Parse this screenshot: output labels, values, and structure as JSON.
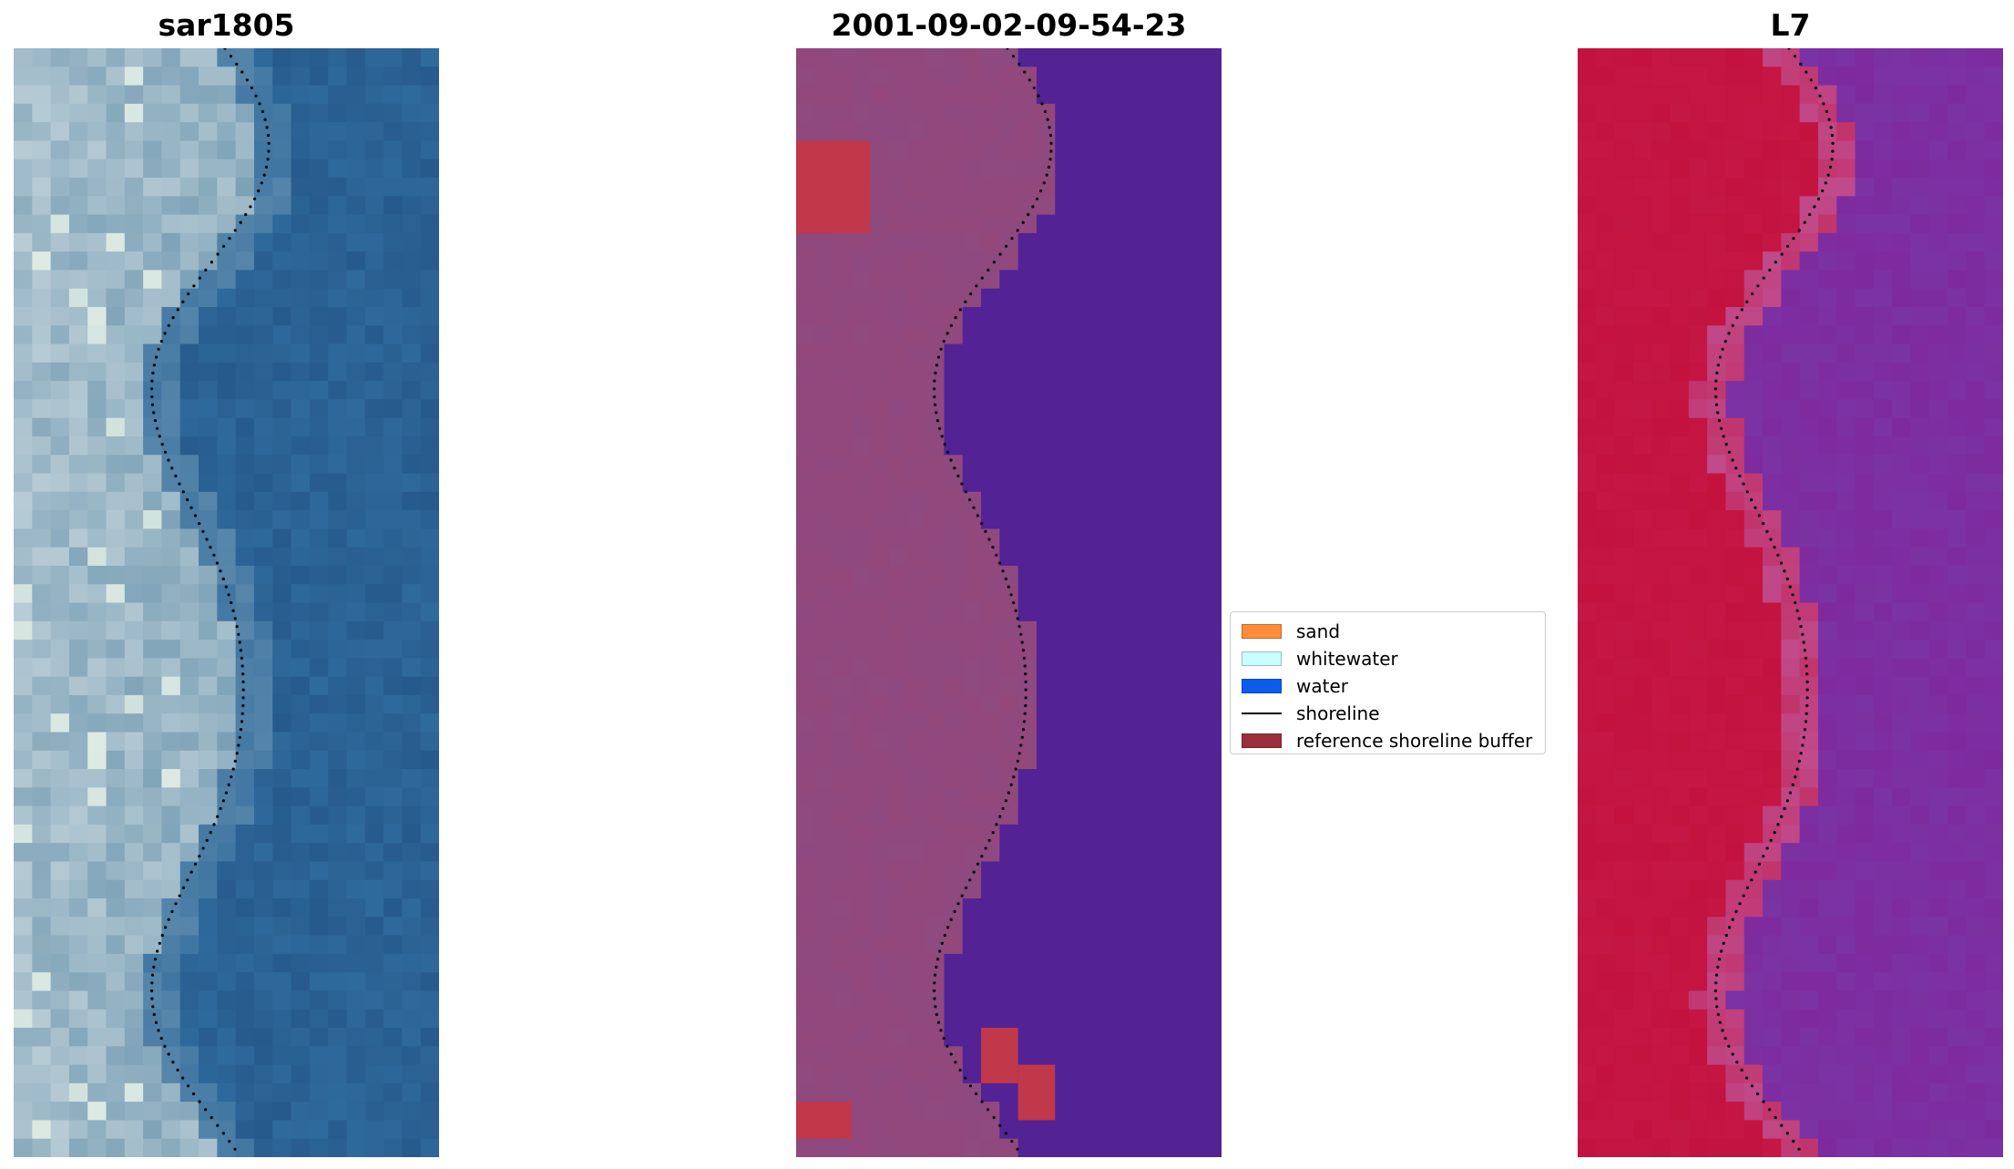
{
  "panels": [
    {
      "title": "sar1805",
      "kind": "rgb",
      "colors": {
        "land_light": "#b9cdd6",
        "land_mid": "#7fa3b8",
        "water": "#2f6a9c",
        "water_dark": "#275a8c"
      }
    },
    {
      "title": "2001-09-02-09-54-23",
      "kind": "classified",
      "colors": {
        "land": "#8e4a80",
        "water": "#532295",
        "buffer": "#c0384a"
      }
    },
    {
      "title": "L7",
      "kind": "index",
      "colors": {
        "land": "#c3123e",
        "transition": "#c04a8a",
        "water": "#7e2a9f"
      }
    }
  ],
  "legend": {
    "items": [
      {
        "label": "sand",
        "color": "#ff8c3a",
        "type": "patch"
      },
      {
        "label": "whitewater",
        "color": "#c9ffff",
        "type": "patch"
      },
      {
        "label": "water",
        "color": "#0b5ceb",
        "type": "patch"
      },
      {
        "label": "shoreline",
        "color": "#000000",
        "type": "line"
      },
      {
        "label": "reference shoreline buffer",
        "color": "#9b2f3b",
        "type": "patch"
      }
    ]
  }
}
